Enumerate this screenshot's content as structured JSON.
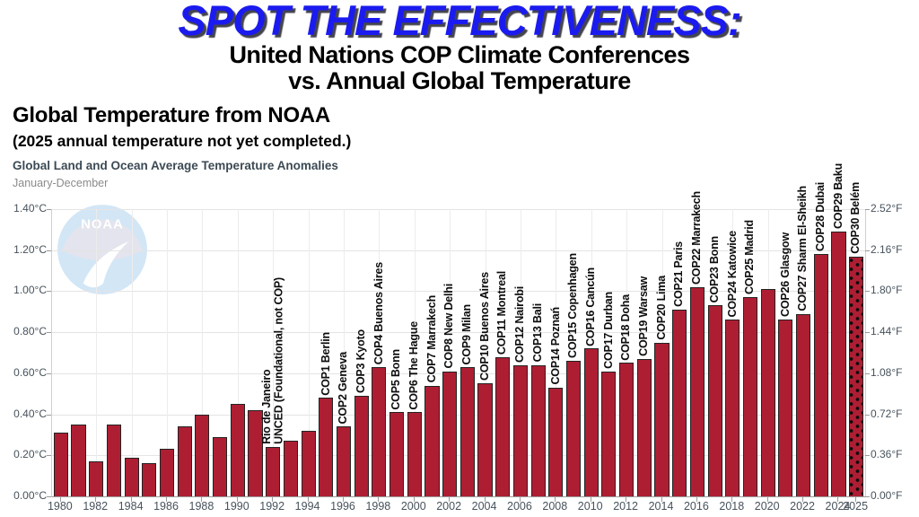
{
  "header": {
    "title_main": "SPOT THE EFFECTIVENESS:",
    "subtitle_line1": "United Nations COP Climate Conferences",
    "subtitle_line2": "vs. Annual Global Temperature"
  },
  "chart_header": {
    "heading": "Global Temperature from NOAA",
    "note": "(2025 annual temperature not yet completed.)"
  },
  "colors": {
    "title_blue": "#1b1bef",
    "bar_fill": "#ae1e33",
    "bar_border": "#232323",
    "grid": "#e4e4e4",
    "axis_text": "#47525b",
    "watermark_blue": "#cfe4f6",
    "watermark_gray": "#e1e2ec"
  },
  "chart_data": {
    "type": "bar",
    "title": "Global Land and Ocean Average Temperature Anomalies",
    "subtitle": "January-December",
    "watermark": "NOAA",
    "grid": true,
    "ylim_c": [
      0,
      1.4
    ],
    "yticks_left": [
      "0.00°C",
      "0.20°C",
      "0.40°C",
      "0.60°C",
      "0.80°C",
      "1.00°C",
      "1.20°C",
      "1.40°C"
    ],
    "yticks_right": [
      "0.00°F",
      "0.36°F",
      "0.72°F",
      "1.08°F",
      "1.44°F",
      "1.80°F",
      "2.16°F",
      "2.52°F"
    ],
    "x": [
      1980,
      1981,
      1982,
      1983,
      1984,
      1985,
      1986,
      1987,
      1988,
      1989,
      1990,
      1991,
      1992,
      1993,
      1994,
      1995,
      1996,
      1997,
      1998,
      1999,
      2000,
      2001,
      2002,
      2003,
      2004,
      2005,
      2006,
      2007,
      2008,
      2009,
      2010,
      2011,
      2012,
      2013,
      2014,
      2015,
      2016,
      2017,
      2018,
      2019,
      2020,
      2021,
      2022,
      2023,
      2024,
      2025
    ],
    "values_c": [
      0.31,
      0.35,
      0.17,
      0.35,
      0.19,
      0.16,
      0.23,
      0.34,
      0.4,
      0.29,
      0.45,
      0.42,
      0.24,
      0.27,
      0.32,
      0.48,
      0.34,
      0.49,
      0.63,
      0.41,
      0.41,
      0.54,
      0.61,
      0.63,
      0.55,
      0.68,
      0.64,
      0.64,
      0.53,
      0.66,
      0.72,
      0.61,
      0.65,
      0.67,
      0.75,
      0.91,
      1.02,
      0.93,
      0.86,
      0.97,
      1.01,
      0.86,
      0.89,
      1.18,
      1.29,
      1.17
    ],
    "partial_years": [
      2025
    ],
    "x_tick_label_years": [
      1980,
      1982,
      1984,
      1986,
      1988,
      1990,
      1992,
      1994,
      1996,
      1998,
      2000,
      2002,
      2004,
      2006,
      2008,
      2010,
      2012,
      2014,
      2016,
      2018,
      2020,
      2022,
      2024,
      2025
    ],
    "bar_annotations": [
      {
        "year": 1992,
        "label": "Rio de Janeiro\nUNCED (Foundational, not COP)"
      },
      {
        "year": 1995,
        "label": "COP1 Berlin"
      },
      {
        "year": 1996,
        "label": "COP2 Geneva"
      },
      {
        "year": 1997,
        "label": "COP3 Kyoto"
      },
      {
        "year": 1998,
        "label": "COP4 Buenos Aires"
      },
      {
        "year": 1999,
        "label": "COP5 Bonn"
      },
      {
        "year": 2000,
        "label": "COP6 The Hague"
      },
      {
        "year": 2001,
        "label": "COP7 Marrakech"
      },
      {
        "year": 2002,
        "label": "COP8 New Delhi"
      },
      {
        "year": 2003,
        "label": "COP9 Milan"
      },
      {
        "year": 2004,
        "label": "COP10 Buenos Aires"
      },
      {
        "year": 2005,
        "label": "COP11 Montreal"
      },
      {
        "year": 2006,
        "label": "COP12 Nairobi"
      },
      {
        "year": 2007,
        "label": "COP13 Bali"
      },
      {
        "year": 2008,
        "label": "COP14 Poznań"
      },
      {
        "year": 2009,
        "label": "COP15 Copenhagen"
      },
      {
        "year": 2010,
        "label": "COP16 Cancún"
      },
      {
        "year": 2011,
        "label": "COP17 Durban"
      },
      {
        "year": 2012,
        "label": "COP18 Doha"
      },
      {
        "year": 2013,
        "label": "COP19 Warsaw"
      },
      {
        "year": 2014,
        "label": "COP20 Lima"
      },
      {
        "year": 2015,
        "label": "COP21 Paris"
      },
      {
        "year": 2016,
        "label": "COP22 Marrakech"
      },
      {
        "year": 2017,
        "label": "COP23 Bonn"
      },
      {
        "year": 2018,
        "label": "COP24 Katowice"
      },
      {
        "year": 2019,
        "label": "COP25 Madrid"
      },
      {
        "year": 2021,
        "label": "COP26 Glasgow"
      },
      {
        "year": 2022,
        "label": "COP27 Sharm El-Sheikh"
      },
      {
        "year": 2023,
        "label": "COP28 Dubai"
      },
      {
        "year": 2024,
        "label": "COP29 Baku"
      },
      {
        "year": 2025,
        "label": "COP30 Belém"
      }
    ]
  }
}
